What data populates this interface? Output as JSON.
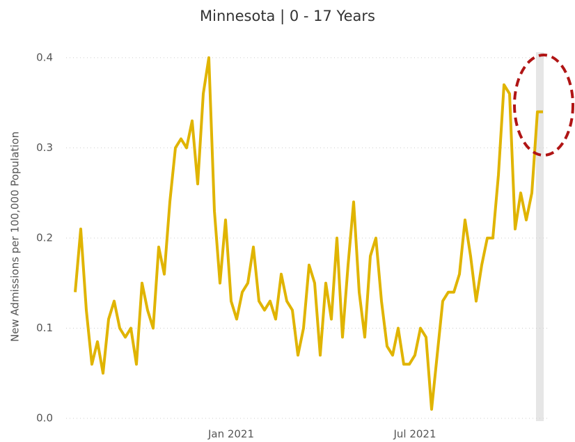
{
  "chart_data": {
    "type": "line",
    "title": "Minnesota | 0 - 17 Years",
    "y_label": "New Admissions per 100,000 Population",
    "color": "#e0b400",
    "grid": true,
    "ylim": [
      0,
      0.42
    ],
    "yticks": [
      {
        "value": 0,
        "label": "0.0"
      },
      0.1,
      0.2,
      0.3,
      0.4
    ],
    "categories": [
      null,
      null,
      null,
      null,
      null,
      null,
      null,
      null,
      null,
      null,
      null,
      null,
      null,
      null,
      null,
      null,
      null,
      null,
      null,
      null,
      null,
      null,
      null,
      null,
      null,
      null,
      null,
      null,
      "Jan 2021",
      null,
      null,
      null,
      null,
      null,
      null,
      null,
      null,
      null,
      null,
      null,
      null,
      null,
      null,
      null,
      null,
      null,
      null,
      null,
      null,
      null,
      null,
      null,
      null,
      null,
      null,
      null,
      null,
      null,
      null,
      null,
      null,
      "Jul 2021",
      null,
      null,
      null,
      null,
      null,
      null,
      null,
      null,
      null,
      null,
      null,
      null,
      null,
      null,
      null,
      null,
      null,
      null,
      null,
      null,
      null,
      null,
      null
    ],
    "values": [
      0.14,
      0.21,
      0.12,
      0.06,
      0.085,
      0.05,
      0.11,
      0.13,
      0.1,
      0.09,
      0.1,
      0.06,
      0.15,
      0.12,
      0.1,
      0.19,
      0.16,
      0.24,
      0.3,
      0.31,
      0.3,
      0.33,
      0.26,
      0.36,
      0.4,
      0.23,
      0.15,
      0.22,
      0.13,
      0.11,
      0.14,
      0.15,
      0.19,
      0.13,
      0.12,
      0.13,
      0.11,
      0.16,
      0.13,
      0.12,
      0.07,
      0.1,
      0.17,
      0.15,
      0.07,
      0.15,
      0.11,
      0.2,
      0.09,
      0.17,
      0.24,
      0.14,
      0.09,
      0.18,
      0.2,
      0.13,
      0.08,
      0.07,
      0.1,
      0.06,
      0.06,
      0.07,
      0.1,
      0.09,
      0.01,
      0.07,
      0.13,
      0.14,
      0.14,
      0.16,
      0.22,
      0.18,
      0.13,
      0.17,
      0.2,
      0.2,
      0.27,
      0.37,
      0.36,
      0.21,
      0.25,
      0.22,
      0.25,
      0.34,
      0.34
    ]
  }
}
